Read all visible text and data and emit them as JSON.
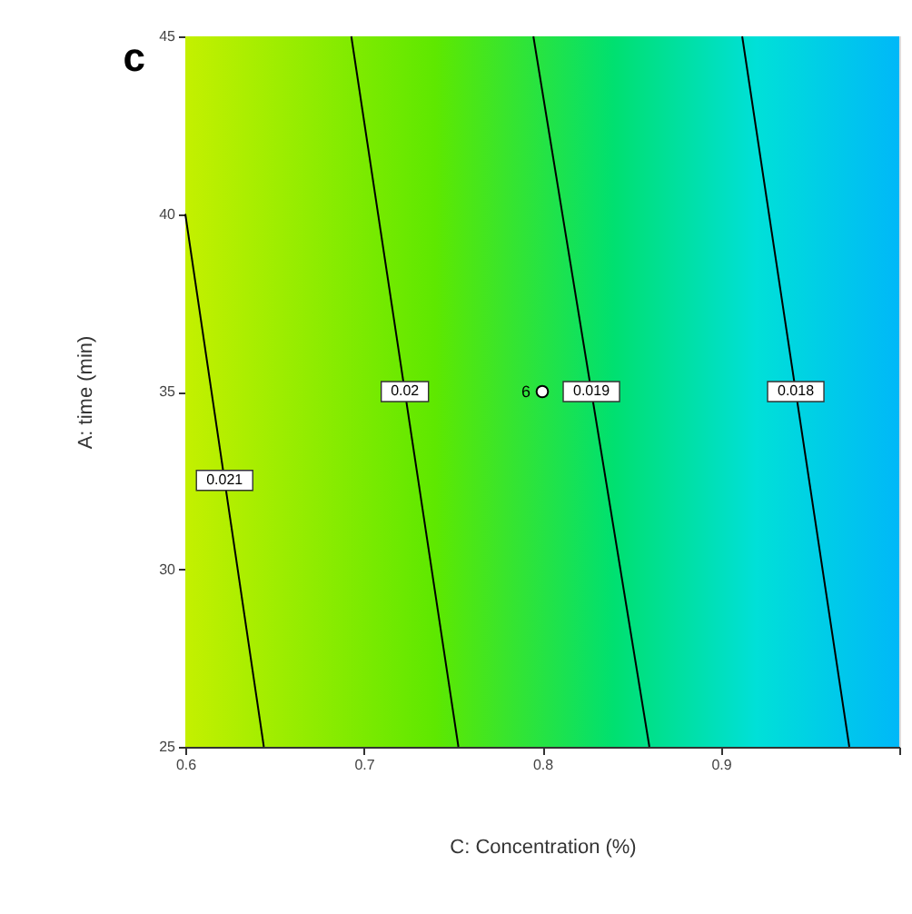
{
  "chart_data": {
    "type": "line",
    "title": "c",
    "xlabel": "C: Concentration (%)",
    "ylabel": "A: time (min)",
    "xlim": [
      0.6,
      1.0
    ],
    "ylim": [
      25,
      45
    ],
    "xticks": [
      0.6,
      0.7,
      0.8,
      0.9,
      {
        "value": 1.0,
        "label": null
      }
    ],
    "yticks": [
      25,
      30,
      35,
      40,
      45
    ],
    "marker": "none",
    "line_style": "solid",
    "series": [
      {
        "name": "0.021",
        "color": "#000000",
        "x": [
          0.6,
          0.644
        ],
        "values": [
          40,
          25
        ]
      },
      {
        "name": "0.02",
        "color": "#000000",
        "x": [
          0.693,
          0.753
        ],
        "values": [
          45,
          25
        ]
      },
      {
        "name": "0.019",
        "color": "#000000",
        "x": [
          0.795,
          0.86
        ],
        "values": [
          45,
          25
        ]
      },
      {
        "name": "0.018",
        "color": "#000000",
        "x": [
          0.912,
          0.972
        ],
        "values": [
          45,
          25
        ]
      },
      {
        "type": "scatter",
        "color": "#ffffff",
        "marker": "circle",
        "x": [
          0.8
        ],
        "values": [
          35
        ]
      }
    ],
    "annotations": [
      {
        "text": "6",
        "x": 0.8,
        "y": 35
      }
    ]
  }
}
